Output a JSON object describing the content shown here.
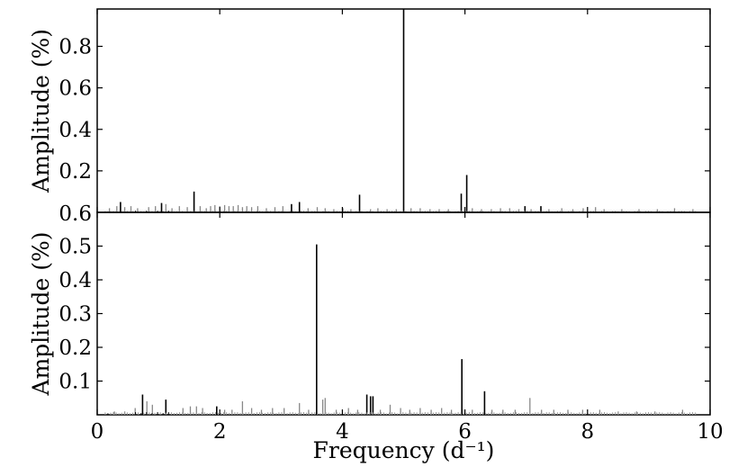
{
  "chart_data": [
    {
      "type": "bar",
      "panel": "top",
      "xlim": [
        0,
        10
      ],
      "ylim": [
        0,
        0.98
      ],
      "ylabel": "Amplitude (%)",
      "yticks": [
        "0.2",
        "0.4",
        "0.6",
        "0.8"
      ],
      "yticks_values": [
        0.2,
        0.4,
        0.6,
        0.8
      ],
      "extra_bottom_label": "0.6",
      "series": [
        {
          "role": "main_peaks",
          "color": "#000000",
          "x": [
            0.38,
            1.05,
            1.58,
            3.17,
            3.3,
            4.28,
            5.0,
            5.94,
            6.03,
            6.98,
            7.24
          ],
          "values": [
            0.05,
            0.045,
            0.1,
            0.04,
            0.05,
            0.085,
            0.98,
            0.09,
            0.18,
            0.03,
            0.03
          ]
        },
        {
          "role": "residual_noise",
          "color": "#888888",
          "x": [
            0.2,
            0.32,
            0.45,
            0.55,
            0.66,
            0.84,
            0.95,
            1.12,
            1.22,
            1.34,
            1.47,
            1.68,
            1.78,
            1.85,
            1.92,
            2.0,
            2.08,
            2.15,
            2.22,
            2.3,
            2.37,
            2.44,
            2.52,
            2.62,
            2.76,
            2.9,
            3.03,
            3.44,
            3.59,
            3.72,
            3.86,
            4.01,
            4.14,
            4.46,
            4.58,
            4.73,
            4.88,
            5.12,
            5.27,
            5.43,
            5.58,
            5.73,
            6.12,
            6.27,
            6.43,
            6.58,
            6.73,
            6.88,
            7.08,
            7.37,
            7.58,
            7.76,
            7.93,
            8.13,
            8.27,
            8.56,
            8.84,
            9.14,
            9.42,
            9.72
          ],
          "values": [
            0.02,
            0.03,
            0.025,
            0.03,
            0.02,
            0.025,
            0.03,
            0.04,
            0.02,
            0.03,
            0.025,
            0.03,
            0.02,
            0.03,
            0.035,
            0.03,
            0.035,
            0.03,
            0.03,
            0.035,
            0.025,
            0.03,
            0.025,
            0.03,
            0.02,
            0.025,
            0.03,
            0.02,
            0.025,
            0.02,
            0.015,
            0.02,
            0.015,
            0.015,
            0.02,
            0.015,
            0.015,
            0.02,
            0.02,
            0.015,
            0.015,
            0.015,
            0.02,
            0.015,
            0.015,
            0.02,
            0.02,
            0.015,
            0.015,
            0.015,
            0.02,
            0.015,
            0.02,
            0.025,
            0.015,
            0.015,
            0.015,
            0.015,
            0.02,
            0.015
          ]
        }
      ]
    },
    {
      "type": "bar",
      "panel": "bottom",
      "xlim": [
        0,
        10
      ],
      "ylim": [
        0,
        0.6
      ],
      "xlabel": "Frequency (d⁻¹)",
      "ylabel": "Amplitude (%)",
      "xticks": [
        "0",
        "2",
        "4",
        "6",
        "8",
        "10"
      ],
      "xticks_values": [
        0,
        2,
        4,
        6,
        8,
        10
      ],
      "yticks": [
        "0.1",
        "0.2",
        "0.3",
        "0.4",
        "0.5"
      ],
      "yticks_values": [
        0.1,
        0.2,
        0.3,
        0.4,
        0.5
      ],
      "series": [
        {
          "role": "main_peaks",
          "color": "#000000",
          "x": [
            0.74,
            1.12,
            1.95,
            3.58,
            4.4,
            4.46,
            4.5,
            5.95,
            6.32
          ],
          "values": [
            0.06,
            0.045,
            0.025,
            0.505,
            0.06,
            0.055,
            0.055,
            0.165,
            0.07
          ]
        },
        {
          "role": "residual_noise",
          "color": "#888888",
          "x": [
            0.28,
            0.45,
            0.62,
            0.81,
            0.9,
            1.4,
            1.52,
            1.62,
            1.72,
            2.08,
            2.2,
            2.37,
            2.52,
            2.68,
            2.86,
            3.05,
            3.3,
            3.45,
            3.68,
            3.72,
            3.9,
            4.1,
            4.25,
            4.62,
            4.78,
            4.95,
            5.1,
            5.27,
            5.45,
            5.62,
            5.78,
            6.12,
            6.44,
            6.62,
            6.82,
            7.06,
            7.25,
            7.45,
            7.68,
            7.92,
            8.2,
            8.5,
            8.8,
            9.1,
            9.55
          ],
          "values": [
            0.01,
            0.01,
            0.02,
            0.04,
            0.03,
            0.02,
            0.025,
            0.025,
            0.02,
            0.015,
            0.015,
            0.04,
            0.02,
            0.015,
            0.02,
            0.02,
            0.035,
            0.015,
            0.045,
            0.05,
            0.015,
            0.02,
            0.015,
            0.015,
            0.03,
            0.02,
            0.015,
            0.02,
            0.015,
            0.02,
            0.015,
            0.015,
            0.015,
            0.015,
            0.015,
            0.05,
            0.015,
            0.015,
            0.015,
            0.015,
            0.015,
            0.01,
            0.01,
            0.01,
            0.015
          ]
        }
      ]
    }
  ]
}
